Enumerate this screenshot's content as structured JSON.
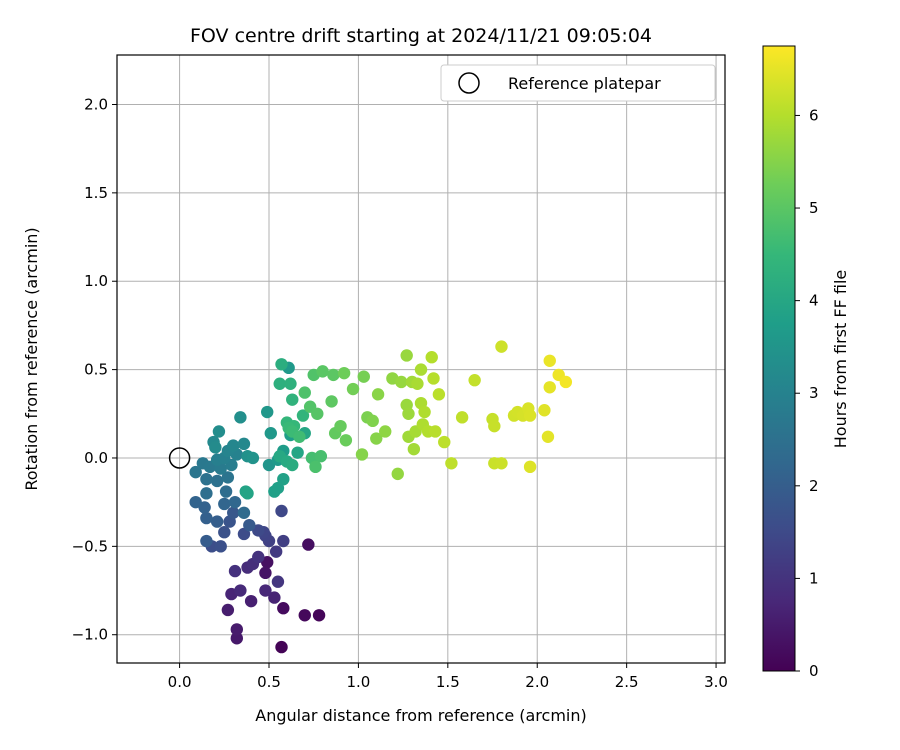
{
  "chart_data": {
    "type": "scatter",
    "title": "FOV centre drift starting at 2024/11/21 09:05:04",
    "xlabel": "Angular distance from reference (arcmin)",
    "ylabel": "Rotation from reference (arcmin)",
    "xlim": [
      -0.35,
      3.05
    ],
    "ylim": [
      -1.16,
      2.28
    ],
    "xticks": [
      "0.0",
      "0.5",
      "1.0",
      "1.5",
      "2.0",
      "2.5",
      "3.0"
    ],
    "xtick_values": [
      0,
      0.5,
      1.0,
      1.5,
      2.0,
      2.5,
      3.0
    ],
    "yticks": [
      "−1.0",
      "−0.5",
      "0.0",
      "0.5",
      "1.0",
      "1.5",
      "2.0"
    ],
    "ytick_values": [
      -1.0,
      -0.5,
      0.0,
      0.5,
      1.0,
      1.5,
      2.0
    ],
    "grid": true,
    "colorbar": {
      "label": "Hours from first FF file",
      "colormap": "viridis",
      "range": [
        0,
        6.75
      ],
      "ticks": [
        "0",
        "1",
        "2",
        "3",
        "4",
        "5",
        "6"
      ],
      "tick_values": [
        0,
        1,
        2,
        3,
        4,
        5,
        6
      ]
    },
    "legend": {
      "position": "top-right",
      "label": "Reference platepar"
    },
    "reference_point": {
      "x": 0.0,
      "y": 0.0
    },
    "series": [
      {
        "points": [
          {
            "x": 0.57,
            "y": -1.07,
            "h": 0.05
          },
          {
            "x": 0.78,
            "y": -0.89,
            "h": 0.1
          },
          {
            "x": 0.7,
            "y": -0.89,
            "h": 0.15
          },
          {
            "x": 0.58,
            "y": -0.85,
            "h": 0.2
          },
          {
            "x": 0.72,
            "y": -0.49,
            "h": 0.25
          },
          {
            "x": 0.49,
            "y": -0.59,
            "h": 0.3
          },
          {
            "x": 0.48,
            "y": -0.65,
            "h": 0.35
          },
          {
            "x": 0.32,
            "y": -1.02,
            "h": 0.45
          },
          {
            "x": 0.32,
            "y": -0.97,
            "h": 0.5
          },
          {
            "x": 0.27,
            "y": -0.86,
            "h": 0.55
          },
          {
            "x": 0.4,
            "y": -0.81,
            "h": 0.6
          },
          {
            "x": 0.53,
            "y": -0.79,
            "h": 0.65
          },
          {
            "x": 0.29,
            "y": -0.77,
            "h": 0.7
          },
          {
            "x": 0.48,
            "y": -0.75,
            "h": 0.75
          },
          {
            "x": 0.34,
            "y": -0.75,
            "h": 0.8
          },
          {
            "x": 0.38,
            "y": -0.62,
            "h": 0.85
          },
          {
            "x": 0.41,
            "y": -0.6,
            "h": 0.9
          },
          {
            "x": 0.31,
            "y": -0.64,
            "h": 0.95
          },
          {
            "x": 0.44,
            "y": -0.56,
            "h": 1.0
          },
          {
            "x": 0.55,
            "y": -0.7,
            "h": 1.05
          },
          {
            "x": 0.54,
            "y": -0.53,
            "h": 1.15
          },
          {
            "x": 0.58,
            "y": -0.47,
            "h": 1.25
          },
          {
            "x": 0.5,
            "y": -0.47,
            "h": 1.3
          },
          {
            "x": 0.48,
            "y": -0.44,
            "h": 1.35
          },
          {
            "x": 0.47,
            "y": -0.42,
            "h": 1.4
          },
          {
            "x": 0.57,
            "y": -0.3,
            "h": 1.45
          },
          {
            "x": 0.44,
            "y": -0.41,
            "h": 1.5
          },
          {
            "x": 0.36,
            "y": -0.43,
            "h": 1.55
          },
          {
            "x": 0.18,
            "y": -0.5,
            "h": 1.6
          },
          {
            "x": 0.23,
            "y": -0.5,
            "h": 1.65
          },
          {
            "x": 0.25,
            "y": -0.42,
            "h": 1.7
          },
          {
            "x": 0.28,
            "y": -0.36,
            "h": 1.75
          },
          {
            "x": 0.3,
            "y": -0.31,
            "h": 1.85
          },
          {
            "x": 0.39,
            "y": -0.38,
            "h": 1.9
          },
          {
            "x": 0.15,
            "y": -0.47,
            "h": 1.95
          },
          {
            "x": 0.21,
            "y": -0.36,
            "h": 2.0
          },
          {
            "x": 0.15,
            "y": -0.34,
            "h": 2.05
          },
          {
            "x": 0.14,
            "y": -0.28,
            "h": 2.1
          },
          {
            "x": 0.09,
            "y": -0.25,
            "h": 2.15
          },
          {
            "x": 0.25,
            "y": -0.26,
            "h": 2.2
          },
          {
            "x": 0.31,
            "y": -0.25,
            "h": 2.25
          },
          {
            "x": 0.36,
            "y": -0.31,
            "h": 2.35
          },
          {
            "x": 0.26,
            "y": -0.19,
            "h": 2.4
          },
          {
            "x": 0.15,
            "y": -0.2,
            "h": 2.45
          },
          {
            "x": 0.21,
            "y": -0.13,
            "h": 2.5
          },
          {
            "x": 0.15,
            "y": -0.12,
            "h": 2.55
          },
          {
            "x": 0.27,
            "y": -0.11,
            "h": 2.6
          },
          {
            "x": 0.09,
            "y": -0.08,
            "h": 2.65
          },
          {
            "x": 0.13,
            "y": -0.03,
            "h": 2.7
          },
          {
            "x": 0.17,
            "y": -0.05,
            "h": 2.75
          },
          {
            "x": 0.23,
            "y": -0.06,
            "h": 2.8
          },
          {
            "x": 0.29,
            "y": -0.04,
            "h": 2.85
          },
          {
            "x": 0.21,
            "y": -0.01,
            "h": 2.9
          },
          {
            "x": 0.25,
            "y": 0.0,
            "h": 2.95
          },
          {
            "x": 0.32,
            "y": 0.02,
            "h": 3.0
          },
          {
            "x": 0.27,
            "y": 0.04,
            "h": 3.05
          },
          {
            "x": 0.3,
            "y": 0.07,
            "h": 3.1
          },
          {
            "x": 0.36,
            "y": 0.08,
            "h": 3.15
          },
          {
            "x": 0.19,
            "y": 0.09,
            "h": 3.2
          },
          {
            "x": 0.2,
            "y": 0.06,
            "h": 3.25
          },
          {
            "x": 0.22,
            "y": 0.15,
            "h": 3.3
          },
          {
            "x": 0.34,
            "y": 0.23,
            "h": 3.35
          },
          {
            "x": 0.38,
            "y": 0.01,
            "h": 3.4
          },
          {
            "x": 0.41,
            "y": 0.0,
            "h": 3.45
          },
          {
            "x": 0.5,
            "y": -0.04,
            "h": 3.5
          },
          {
            "x": 0.49,
            "y": 0.26,
            "h": 3.55
          },
          {
            "x": 0.51,
            "y": 0.14,
            "h": 3.6
          },
          {
            "x": 0.61,
            "y": 0.51,
            "h": 3.62
          },
          {
            "x": 0.55,
            "y": -0.01,
            "h": 3.65
          },
          {
            "x": 0.58,
            "y": 0.04,
            "h": 3.7
          },
          {
            "x": 0.62,
            "y": 0.13,
            "h": 3.75
          },
          {
            "x": 0.53,
            "y": -0.19,
            "h": 3.8
          },
          {
            "x": 0.55,
            "y": -0.17,
            "h": 3.82
          },
          {
            "x": 0.58,
            "y": -0.12,
            "h": 3.85
          },
          {
            "x": 0.37,
            "y": -0.19,
            "h": 3.9
          },
          {
            "x": 0.38,
            "y": -0.2,
            "h": 3.92
          },
          {
            "x": 0.66,
            "y": 0.03,
            "h": 3.95
          },
          {
            "x": 0.7,
            "y": 0.14,
            "h": 4.0
          },
          {
            "x": 0.56,
            "y": 0.01,
            "h": 4.05
          },
          {
            "x": 0.6,
            "y": -0.02,
            "h": 4.1
          },
          {
            "x": 0.63,
            "y": -0.04,
            "h": 4.15
          },
          {
            "x": 0.57,
            "y": 0.53,
            "h": 4.2
          },
          {
            "x": 0.56,
            "y": 0.42,
            "h": 4.25
          },
          {
            "x": 0.62,
            "y": 0.42,
            "h": 4.3
          },
          {
            "x": 0.63,
            "y": 0.33,
            "h": 4.35
          },
          {
            "x": 0.69,
            "y": 0.24,
            "h": 4.4
          },
          {
            "x": 0.6,
            "y": 0.2,
            "h": 4.45
          },
          {
            "x": 0.64,
            "y": 0.18,
            "h": 4.5
          },
          {
            "x": 0.61,
            "y": 0.17,
            "h": 4.55
          },
          {
            "x": 0.63,
            "y": 0.15,
            "h": 4.6
          },
          {
            "x": 0.67,
            "y": 0.12,
            "h": 4.65
          },
          {
            "x": 0.74,
            "y": 0.0,
            "h": 4.7
          },
          {
            "x": 0.79,
            "y": 0.01,
            "h": 4.75
          },
          {
            "x": 0.76,
            "y": -0.05,
            "h": 4.8
          },
          {
            "x": 0.7,
            "y": 0.37,
            "h": 4.85
          },
          {
            "x": 0.75,
            "y": 0.47,
            "h": 4.88
          },
          {
            "x": 0.73,
            "y": 0.29,
            "h": 4.9
          },
          {
            "x": 0.77,
            "y": 0.25,
            "h": 4.95
          },
          {
            "x": 0.8,
            "y": 0.49,
            "h": 5.0
          },
          {
            "x": 0.86,
            "y": 0.47,
            "h": 5.02
          },
          {
            "x": 0.85,
            "y": 0.32,
            "h": 5.05
          },
          {
            "x": 0.87,
            "y": 0.14,
            "h": 5.1
          },
          {
            "x": 0.9,
            "y": 0.18,
            "h": 5.15
          },
          {
            "x": 0.93,
            "y": 0.1,
            "h": 5.2
          },
          {
            "x": 0.92,
            "y": 0.48,
            "h": 5.25
          },
          {
            "x": 0.97,
            "y": 0.39,
            "h": 5.3
          },
          {
            "x": 1.03,
            "y": 0.46,
            "h": 5.35
          },
          {
            "x": 1.05,
            "y": 0.23,
            "h": 5.4
          },
          {
            "x": 1.08,
            "y": 0.21,
            "h": 5.45
          },
          {
            "x": 1.02,
            "y": 0.02,
            "h": 5.5
          },
          {
            "x": 1.1,
            "y": 0.11,
            "h": 5.52
          },
          {
            "x": 1.11,
            "y": 0.36,
            "h": 5.55
          },
          {
            "x": 1.15,
            "y": 0.15,
            "h": 5.6
          },
          {
            "x": 1.19,
            "y": 0.45,
            "h": 5.62
          },
          {
            "x": 1.22,
            "y": -0.09,
            "h": 5.65
          },
          {
            "x": 1.24,
            "y": 0.43,
            "h": 5.68
          },
          {
            "x": 1.27,
            "y": 0.58,
            "h": 5.7
          },
          {
            "x": 1.27,
            "y": 0.3,
            "h": 5.72
          },
          {
            "x": 1.28,
            "y": 0.25,
            "h": 5.75
          },
          {
            "x": 1.28,
            "y": 0.12,
            "h": 5.78
          },
          {
            "x": 1.3,
            "y": 0.43,
            "h": 5.8
          },
          {
            "x": 1.31,
            "y": 0.05,
            "h": 5.82
          },
          {
            "x": 1.32,
            "y": 0.15,
            "h": 5.85
          },
          {
            "x": 1.33,
            "y": 0.42,
            "h": 5.88
          },
          {
            "x": 1.35,
            "y": 0.5,
            "h": 5.9
          },
          {
            "x": 1.35,
            "y": 0.31,
            "h": 5.92
          },
          {
            "x": 1.36,
            "y": 0.19,
            "h": 5.94
          },
          {
            "x": 1.37,
            "y": 0.26,
            "h": 5.96
          },
          {
            "x": 1.39,
            "y": 0.15,
            "h": 5.98
          },
          {
            "x": 1.41,
            "y": 0.57,
            "h": 6.0
          },
          {
            "x": 1.42,
            "y": 0.45,
            "h": 6.02
          },
          {
            "x": 1.43,
            "y": 0.15,
            "h": 6.04
          },
          {
            "x": 1.45,
            "y": 0.36,
            "h": 6.06
          },
          {
            "x": 1.48,
            "y": 0.09,
            "h": 6.08
          },
          {
            "x": 1.52,
            "y": -0.03,
            "h": 6.1
          },
          {
            "x": 1.58,
            "y": 0.23,
            "h": 6.12
          },
          {
            "x": 1.65,
            "y": 0.44,
            "h": 6.15
          },
          {
            "x": 1.75,
            "y": 0.22,
            "h": 6.18
          },
          {
            "x": 1.76,
            "y": 0.18,
            "h": 6.2
          },
          {
            "x": 1.76,
            "y": -0.03,
            "h": 6.22
          },
          {
            "x": 1.8,
            "y": -0.03,
            "h": 6.24
          },
          {
            "x": 1.8,
            "y": 0.63,
            "h": 6.26
          },
          {
            "x": 1.87,
            "y": 0.24,
            "h": 6.3
          },
          {
            "x": 1.89,
            "y": 0.26,
            "h": 6.32
          },
          {
            "x": 1.92,
            "y": 0.24,
            "h": 6.35
          },
          {
            "x": 1.95,
            "y": 0.28,
            "h": 6.38
          },
          {
            "x": 1.96,
            "y": 0.24,
            "h": 6.4
          },
          {
            "x": 1.96,
            "y": -0.05,
            "h": 6.42
          },
          {
            "x": 2.04,
            "y": 0.27,
            "h": 6.45
          },
          {
            "x": 2.06,
            "y": 0.12,
            "h": 6.48
          },
          {
            "x": 2.07,
            "y": 0.4,
            "h": 6.5
          },
          {
            "x": 2.07,
            "y": 0.55,
            "h": 6.55
          },
          {
            "x": 2.12,
            "y": 0.47,
            "h": 6.6
          },
          {
            "x": 2.16,
            "y": 0.43,
            "h": 6.65
          }
        ]
      }
    ]
  }
}
